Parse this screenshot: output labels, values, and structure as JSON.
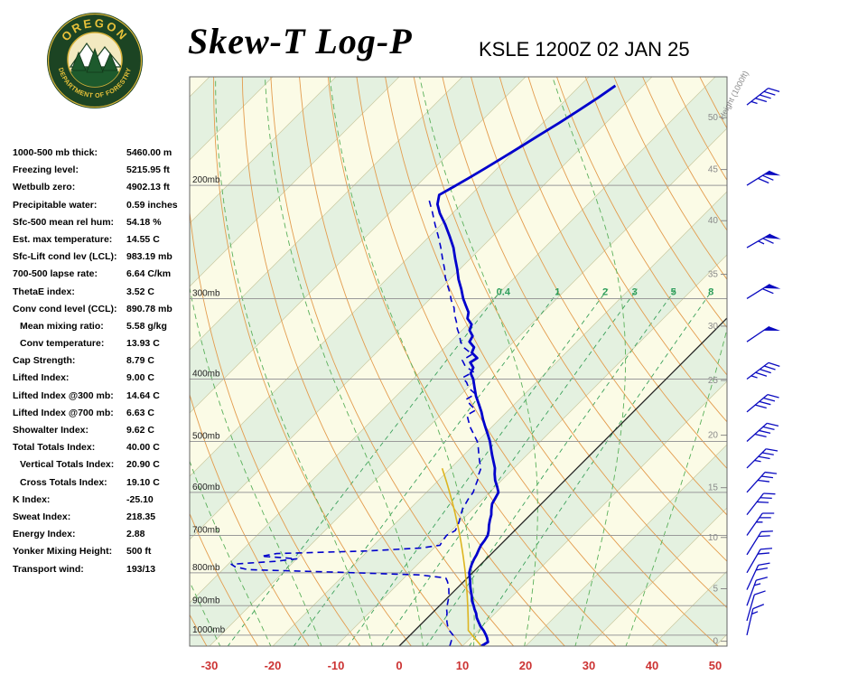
{
  "header": {
    "title": "Skew-T Log-P",
    "station_line": "KSLE 1200Z 02 JAN 25",
    "logo": {
      "top_text": "OREGON",
      "bottom_text": "DEPARTMENT OF FORESTRY"
    }
  },
  "stats": {
    "rows": [
      {
        "label": "1000-500 mb thick:",
        "value": "5460.00 m",
        "indent": false
      },
      {
        "label": "Freezing level:",
        "value": "5215.95 ft",
        "indent": false
      },
      {
        "label": "Wetbulb zero:",
        "value": "4902.13 ft",
        "indent": false
      },
      {
        "label": "Precipitable water:",
        "value": "0.59 inches",
        "indent": false
      },
      {
        "label": "Sfc-500 mean rel hum:",
        "value": "54.18 %",
        "indent": false
      },
      {
        "label": "Est. max temperature:",
        "value": "14.55 C",
        "indent": false
      },
      {
        "label": "Sfc-Lift cond lev (LCL):",
        "value": "983.19 mb",
        "indent": false
      },
      {
        "label": "700-500 lapse rate:",
        "value": "6.64 C/km",
        "indent": false
      },
      {
        "label": "ThetaE index:",
        "value": "3.52 C",
        "indent": false
      },
      {
        "label": "Conv cond level (CCL):",
        "value": "890.78 mb",
        "indent": false
      },
      {
        "label": "Mean mixing ratio:",
        "value": "5.58 g/kg",
        "indent": true
      },
      {
        "label": "Conv temperature:",
        "value": "13.93 C",
        "indent": true
      },
      {
        "label": "Cap Strength:",
        "value": "8.79 C",
        "indent": false
      },
      {
        "label": "Lifted Index:",
        "value": "9.00 C",
        "indent": false
      },
      {
        "label": "Lifted Index @300 mb:",
        "value": "14.64 C",
        "indent": false
      },
      {
        "label": "Lifted Index @700 mb:",
        "value": "6.63 C",
        "indent": false
      },
      {
        "label": "Showalter Index:",
        "value": "9.62 C",
        "indent": false
      },
      {
        "label": "Total Totals Index:",
        "value": "40.00 C",
        "indent": false
      },
      {
        "label": "Vertical Totals Index:",
        "value": "20.90 C",
        "indent": true
      },
      {
        "label": "Cross Totals Index:",
        "value": "19.10 C",
        "indent": true
      },
      {
        "label": "K Index:",
        "value": "-25.10",
        "indent": false
      },
      {
        "label": "Sweat Index:",
        "value": "218.35",
        "indent": false
      },
      {
        "label": "Energy Index:",
        "value": "2.88",
        "indent": false
      },
      {
        "label": "Yonker Mixing Height:",
        "value": "500 ft",
        "indent": false
      },
      {
        "label": "Transport wind:",
        "value": "193/13",
        "indent": false
      }
    ]
  },
  "chart_data": {
    "type": "skewt-log-p",
    "title": "Skew-T Log-P",
    "station": "KSLE",
    "valid_time": "1200Z 02 JAN 25",
    "pressure_levels_mb": [
      200,
      300,
      400,
      500,
      600,
      700,
      800,
      900,
      1000
    ],
    "pressure_labels": [
      "200mb",
      "300mb",
      "400mb",
      "500mb",
      "600mb",
      "700mb",
      "800mb",
      "900mb",
      "1000mb"
    ],
    "temp_axis_c": [
      -30,
      -20,
      -10,
      0,
      10,
      20,
      30,
      40,
      50
    ],
    "height_scale": {
      "axis_label": "Height (1000ft)",
      "labels_kft": [
        0,
        5,
        10,
        15,
        20,
        25,
        30,
        35,
        40,
        45,
        50
      ],
      "pressures_mb": [
        1022,
        847,
        705,
        590,
        489,
        402,
        331,
        275,
        227,
        189,
        157
      ]
    },
    "mixing_ratio_gkg": [
      0.4,
      1,
      2,
      3,
      5,
      8
    ],
    "mixing_ratio_labels": [
      "0.4",
      "1",
      "2",
      "3",
      "5",
      "8"
    ],
    "dry_adiabats_k": [
      232,
      240,
      248,
      256,
      264,
      272,
      280,
      288,
      296,
      304,
      312,
      320,
      328,
      336,
      344,
      352,
      360,
      368,
      376,
      384,
      392,
      400,
      408,
      416,
      424,
      432,
      440
    ],
    "moist_adiabats_c": [
      -28,
      -20,
      -12,
      -4,
      4,
      12,
      20,
      28,
      36
    ],
    "parcel": {
      "surface_p": 1040,
      "surface_t": 13,
      "lcl_p": 983.19,
      "top_p": 550
    },
    "temperature_profile": [
      [
        1040,
        13
      ],
      [
        1025,
        13.4
      ],
      [
        1010,
        12.6
      ],
      [
        1000,
        12
      ],
      [
        985,
        11
      ],
      [
        970,
        9.8
      ],
      [
        955,
        8.8
      ],
      [
        940,
        7.8
      ],
      [
        925,
        7
      ],
      [
        910,
        6
      ],
      [
        900,
        5.4
      ],
      [
        885,
        4.4
      ],
      [
        870,
        3.6
      ],
      [
        855,
        2.7
      ],
      [
        840,
        1.8
      ],
      [
        825,
        1
      ],
      [
        810,
        0.1
      ],
      [
        800,
        -0.5
      ],
      [
        788,
        -1
      ],
      [
        775,
        -1.5
      ],
      [
        762,
        -1.9
      ],
      [
        750,
        -2.2
      ],
      [
        738,
        -2.6
      ],
      [
        725,
        -3
      ],
      [
        712,
        -3.2
      ],
      [
        700,
        -3.5
      ],
      [
        688,
        -4.1
      ],
      [
        675,
        -4.9
      ],
      [
        662,
        -5.6
      ],
      [
        650,
        -6.2
      ],
      [
        638,
        -7
      ],
      [
        625,
        -7.8
      ],
      [
        612,
        -8.2
      ],
      [
        600,
        -8.6
      ],
      [
        588,
        -9.7
      ],
      [
        575,
        -11
      ],
      [
        562,
        -12.1
      ],
      [
        550,
        -13
      ],
      [
        538,
        -14.2
      ],
      [
        525,
        -15.5
      ],
      [
        512,
        -16.8
      ],
      [
        500,
        -18
      ],
      [
        488,
        -19.4
      ],
      [
        475,
        -21
      ],
      [
        462,
        -22.6
      ],
      [
        450,
        -24
      ],
      [
        438,
        -25.6
      ],
      [
        425,
        -27.4
      ],
      [
        412,
        -29
      ],
      [
        400,
        -30.5
      ],
      [
        392,
        -31.8
      ],
      [
        384,
        -32.3
      ],
      [
        377,
        -33.6
      ],
      [
        371,
        -33.2
      ],
      [
        364,
        -34.9
      ],
      [
        357,
        -35.4
      ],
      [
        350,
        -37
      ],
      [
        343,
        -37.4
      ],
      [
        336,
        -38.8
      ],
      [
        329,
        -39.4
      ],
      [
        322,
        -41
      ],
      [
        315,
        -41.8
      ],
      [
        308,
        -43.2
      ],
      [
        300,
        -44.8
      ],
      [
        290,
        -46.6
      ],
      [
        280,
        -48.6
      ],
      [
        270,
        -50.4
      ],
      [
        260,
        -52.4
      ],
      [
        250,
        -54.4
      ],
      [
        240,
        -56.8
      ],
      [
        230,
        -59.4
      ],
      [
        221,
        -62
      ],
      [
        214,
        -63.8
      ],
      [
        207,
        -65
      ],
      [
        201,
        -64
      ],
      [
        195,
        -63
      ],
      [
        188,
        -61.9
      ],
      [
        181,
        -60.8
      ],
      [
        174,
        -59.7
      ],
      [
        167,
        -58.6
      ],
      [
        160,
        -57.4
      ],
      [
        153,
        -56.3
      ],
      [
        146,
        -55.2
      ],
      [
        140,
        -54.4
      ]
    ],
    "dewpoint_profile": [
      [
        1040,
        8
      ],
      [
        1020,
        7.4
      ],
      [
        1000,
        6.8
      ],
      [
        985,
        5.6
      ],
      [
        970,
        4.6
      ],
      [
        955,
        3.8
      ],
      [
        940,
        3
      ],
      [
        925,
        2.4
      ],
      [
        910,
        1.6
      ],
      [
        900,
        1.2
      ],
      [
        885,
        0.6
      ],
      [
        870,
        0
      ],
      [
        855,
        -0.8
      ],
      [
        840,
        -1.6
      ],
      [
        825,
        -2.6
      ],
      [
        815,
        -3.4
      ],
      [
        806,
        -8
      ],
      [
        798,
        -22
      ],
      [
        791,
        -36
      ],
      [
        783,
        -38.5
      ],
      [
        776,
        -39.5
      ],
      [
        768,
        -33
      ],
      [
        761,
        -30
      ],
      [
        754,
        -36
      ],
      [
        747,
        -34
      ],
      [
        740,
        -20
      ],
      [
        732,
        -12
      ],
      [
        725,
        -9.5
      ],
      [
        712,
        -9.8
      ],
      [
        700,
        -10
      ],
      [
        688,
        -9.4
      ],
      [
        675,
        -9.8
      ],
      [
        662,
        -10.4
      ],
      [
        650,
        -11
      ],
      [
        638,
        -11.6
      ],
      [
        625,
        -12
      ],
      [
        612,
        -12.4
      ],
      [
        600,
        -12.6
      ],
      [
        588,
        -13.2
      ],
      [
        575,
        -13.8
      ],
      [
        562,
        -14.6
      ],
      [
        550,
        -15.2
      ],
      [
        538,
        -16.4
      ],
      [
        525,
        -17.6
      ],
      [
        512,
        -18.8
      ],
      [
        500,
        -20
      ],
      [
        488,
        -21.6
      ],
      [
        475,
        -23.4
      ],
      [
        465,
        -24.6
      ],
      [
        455,
        -25.8
      ],
      [
        447,
        -25.2
      ],
      [
        438,
        -27
      ],
      [
        430,
        -28.4
      ],
      [
        422,
        -27.8
      ],
      [
        413,
        -29.8
      ],
      [
        405,
        -31
      ],
      [
        398,
        -32.4
      ],
      [
        390,
        -31.6
      ],
      [
        382,
        -33.8
      ],
      [
        374,
        -35.2
      ],
      [
        366,
        -34.6
      ],
      [
        358,
        -36.8
      ],
      [
        350,
        -38.4
      ],
      [
        342,
        -39.6
      ],
      [
        334,
        -41
      ],
      [
        326,
        -42.2
      ],
      [
        318,
        -43.6
      ],
      [
        310,
        -44.8
      ],
      [
        302,
        -46.4
      ],
      [
        294,
        -47.8
      ],
      [
        286,
        -49.4
      ],
      [
        278,
        -51
      ],
      [
        270,
        -52.4
      ],
      [
        260,
        -54.4
      ],
      [
        250,
        -56.4
      ],
      [
        240,
        -58.6
      ],
      [
        230,
        -61
      ],
      [
        220,
        -63.4
      ],
      [
        210,
        -66
      ]
    ],
    "winds": [
      [
        1000,
        193,
        13
      ],
      [
        950,
        196,
        12
      ],
      [
        900,
        200,
        15
      ],
      [
        850,
        205,
        18
      ],
      [
        800,
        210,
        20
      ],
      [
        750,
        212,
        22
      ],
      [
        700,
        215,
        25
      ],
      [
        650,
        218,
        28
      ],
      [
        600,
        222,
        30
      ],
      [
        550,
        225,
        33
      ],
      [
        500,
        228,
        38
      ],
      [
        450,
        230,
        42
      ],
      [
        400,
        233,
        47
      ],
      [
        350,
        236,
        52
      ],
      [
        300,
        238,
        58
      ],
      [
        250,
        240,
        65
      ],
      [
        200,
        238,
        70
      ],
      [
        150,
        232,
        45
      ]
    ],
    "colors": {
      "band_cream": "#fbfbe6",
      "band_green": "#e4f1e0",
      "isotherm_edge": "#c9c9a0",
      "zero_isotherm": "#222222",
      "isobar": "#9a9a9a",
      "dry_adiabat": "#e39c4e",
      "moist_adiabat": "#5ab05a",
      "mixing_line": "#3aa05a",
      "mixing_label": "#2e9e5b",
      "temperature": "#0000cc",
      "dewpoint": "#0000cc",
      "parcel": "#ddb520",
      "wind_barb": "#0a0ac0",
      "axis_red": "#cc3333",
      "height_gray": "#8a8a8a",
      "pressure_label": "#222222",
      "border": "#666666"
    }
  }
}
